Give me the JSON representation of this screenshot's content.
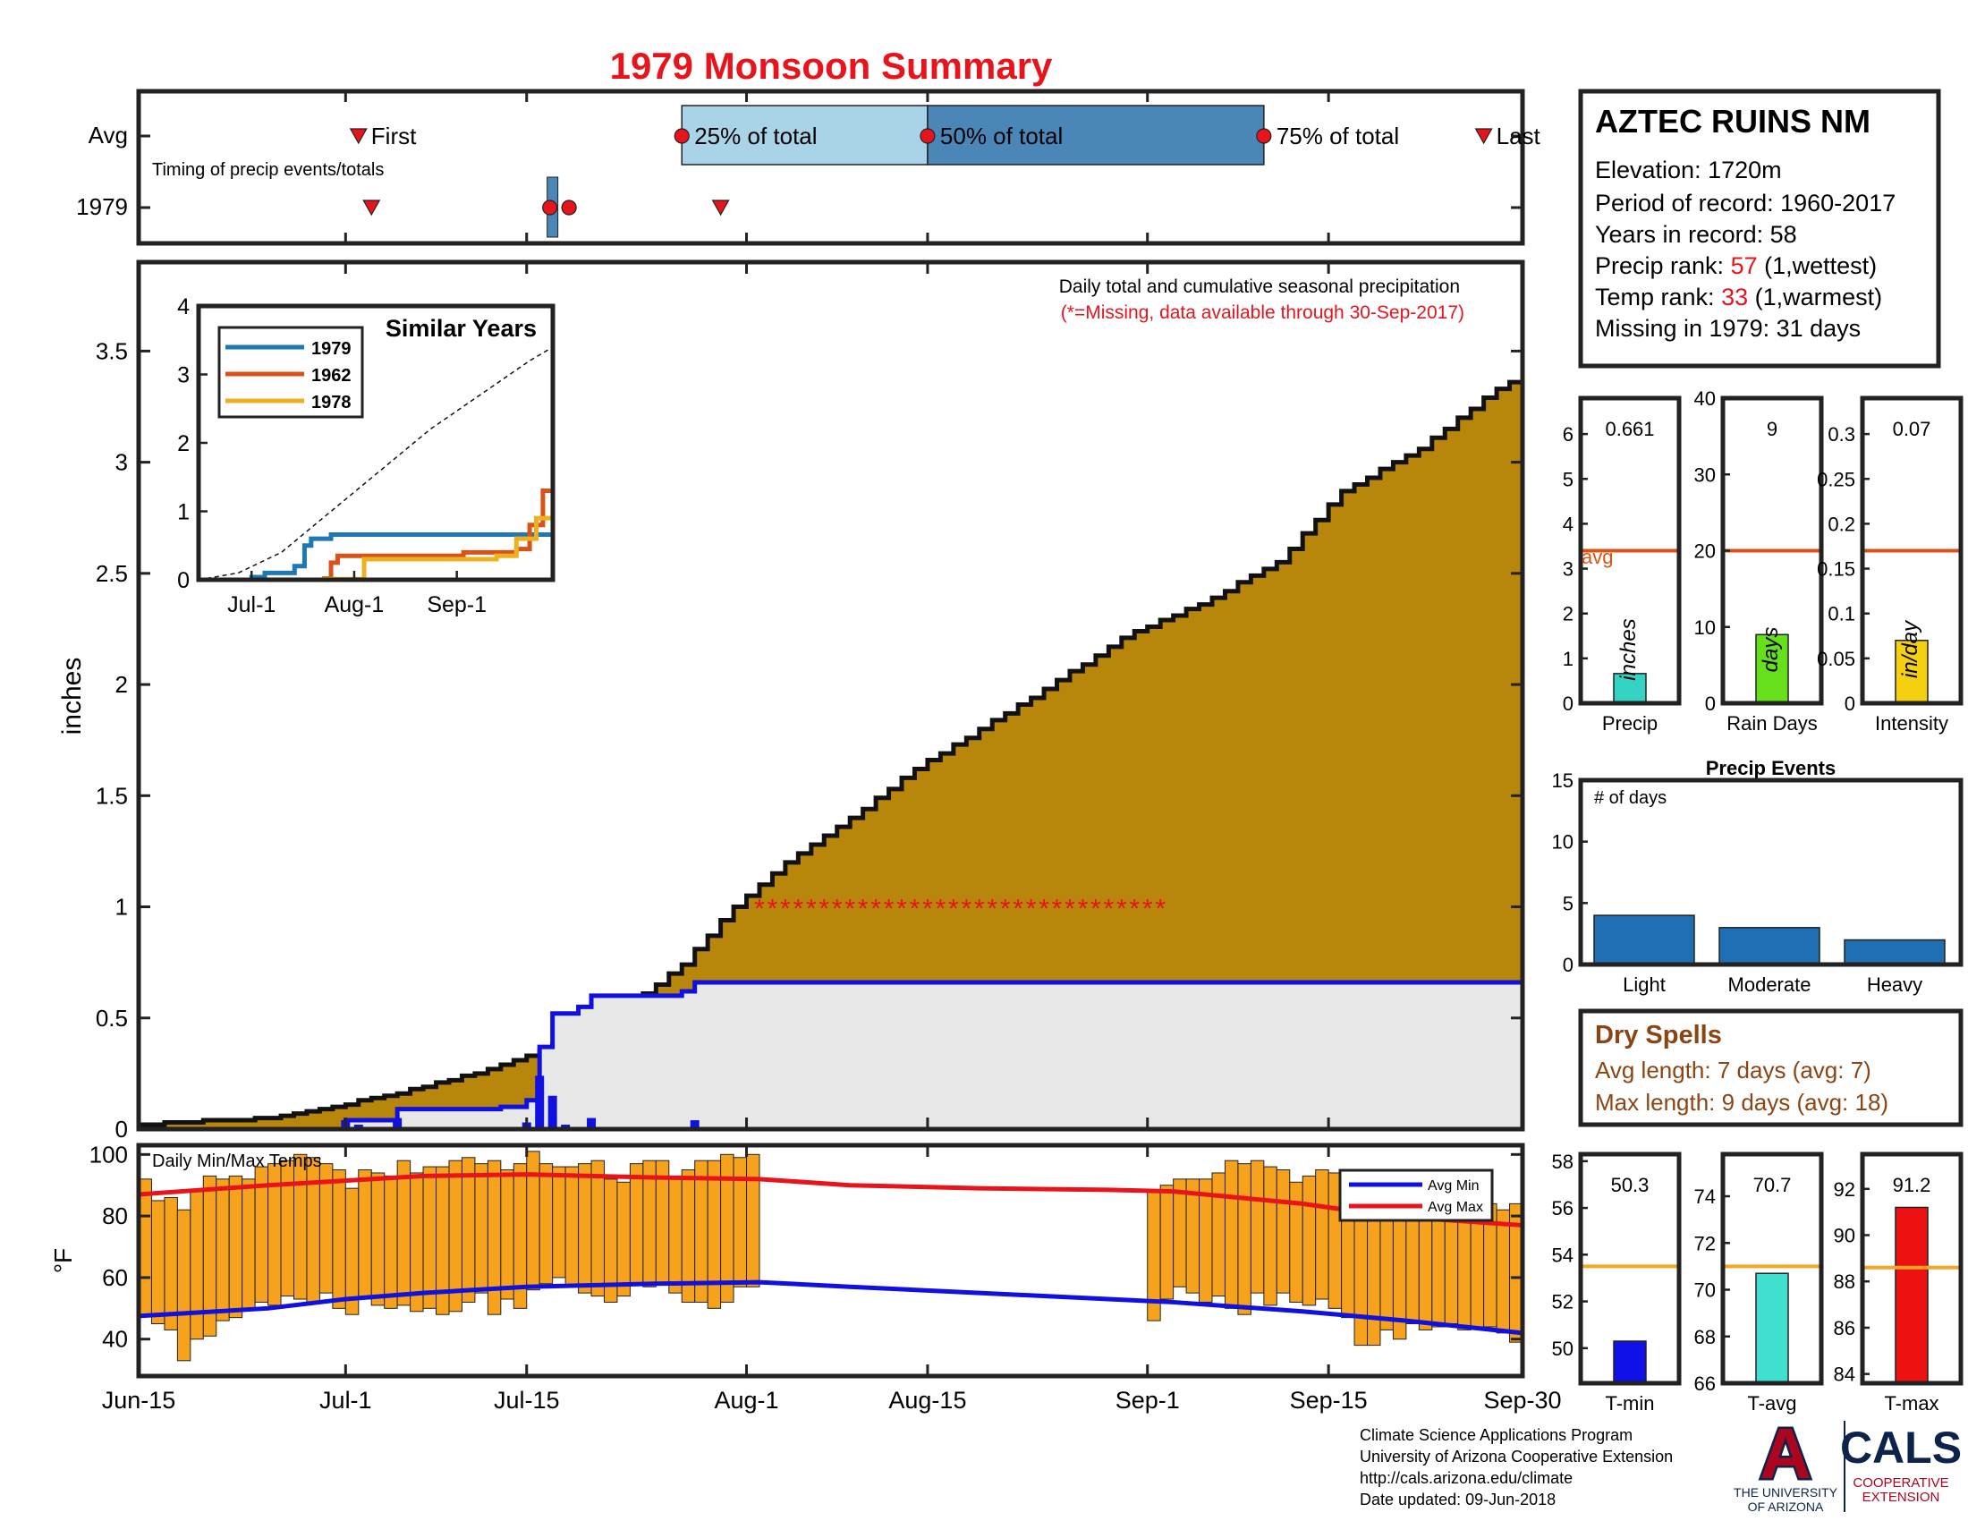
{
  "title": "1979 Monsoon Summary",
  "colors": {
    "title": "#e8141c",
    "cumulative_avg_fill": "#b8860b",
    "year_fill": "#e8e8e8",
    "year_line": "#1010e0",
    "daily_bar": "#1010e0",
    "temp_bar": "#f7a21c",
    "avg_min": "#1010e0",
    "avg_max": "#e8141c",
    "missing": "#e8141c",
    "sim_1979": "#1f77b4",
    "sim_1962": "#d95319",
    "sim_1978": "#edb120",
    "timing_light": "#a9d4e8",
    "timing_dark": "#4a86b8",
    "precip_bar": "#35d3c3",
    "raindays_bar": "#66e01a",
    "intensity_bar": "#f5d010",
    "events_bar": "#1f6fb4",
    "avg_line": "#d95319",
    "temp_avg_line": "#f5a623",
    "tmin_bar": "#1010e8",
    "tavg_bar": "#40e0d0",
    "tmax_bar": "#ee1111",
    "dry_text": "#8b4513",
    "brand_navy": "#0c234b",
    "brand_red": "#ab0520"
  },
  "timing": {
    "row_labels": [
      "Avg",
      "1979"
    ],
    "subtitle": "Timing of precip events/totals",
    "avg_labels": {
      "first": "First",
      "p25": "25% of total",
      "p50": "50% of total",
      "p75": "75% of total",
      "last": "Last"
    },
    "avg_days": {
      "first": 17,
      "p25": 42,
      "p50": 61,
      "p75": 87,
      "last": 104
    },
    "year_days": {
      "first": 18,
      "p25": 32,
      "p50": 33,
      "p75": 33,
      "last": 45
    }
  },
  "main": {
    "ylabel": "inches",
    "yticks": [
      "0",
      "0.5",
      "1",
      "1.5",
      "2",
      "2.5",
      "3",
      "3.5"
    ],
    "ymax": 3.9,
    "days": 107,
    "note1": "Daily total and cumulative seasonal precipitation",
    "note2": "(*=Missing, data available through 30-Sep-2017)",
    "missing_day_range": [
      48,
      79
    ],
    "missing_y": 1.0
  },
  "inset": {
    "title": "Similar Years",
    "yticks": [
      "0",
      "1",
      "2",
      "3",
      "4"
    ],
    "xticks": [
      "Jul-1",
      "Aug-1",
      "Sep-1"
    ],
    "legend": [
      "1979",
      "1962",
      "1978"
    ]
  },
  "temps": {
    "title": "Daily Min/Max Temps",
    "ylabel": "°F",
    "yticks": [
      "40",
      "60",
      "80",
      "100"
    ],
    "legend": [
      "Avg Min",
      "Avg Max"
    ]
  },
  "xaxis": {
    "labels": [
      "Jun-15",
      "Jul-1",
      "Jul-15",
      "Aug-1",
      "Aug-15",
      "Sep-1",
      "Sep-15",
      "Sep-30"
    ]
  },
  "station": {
    "name": "AZTEC RUINS NM",
    "elevation": "Elevation: 1720m",
    "period": "Period of record: 1960-2017",
    "years": "Years in record: 58",
    "precip_rank_label": "Precip rank: ",
    "precip_rank_value": "57",
    "precip_rank_note": " (1,wettest)",
    "temp_rank_label": "Temp rank: ",
    "temp_rank_value": "33",
    "temp_rank_note": " (1,warmest)",
    "missing": "Missing in 1979: 31 days"
  },
  "stats": {
    "precip": {
      "value": "0.661",
      "unit": "inches",
      "label": "Precip",
      "avg_label": "avg",
      "yticks": [
        "0",
        "1",
        "2",
        "3",
        "4",
        "5",
        "6"
      ]
    },
    "raindays": {
      "value": "9",
      "unit": "days",
      "label": "Rain Days",
      "yticks": [
        "0",
        "10",
        "20",
        "30",
        "40"
      ]
    },
    "intensity": {
      "value": "0.07",
      "unit": "in/day",
      "label": "Intensity",
      "yticks": [
        "0",
        "0.05",
        "0.1",
        "0.15",
        "0.2",
        "0.25",
        "0.3"
      ]
    }
  },
  "events": {
    "title": "Precip Events",
    "ylabel": "# of days",
    "yticks": [
      "0",
      "5",
      "10",
      "15"
    ],
    "categories": [
      "Light",
      "Moderate",
      "Heavy"
    ]
  },
  "dry": {
    "title": "Dry Spells",
    "avg": "Avg length: 7 days (avg: 7)",
    "max": "Max length: 9 days (avg: 18)"
  },
  "tstats": {
    "tmin": {
      "value": "50.3",
      "label": "T-min",
      "yticks": [
        "50",
        "52",
        "54",
        "56",
        "58"
      ]
    },
    "tavg": {
      "value": "70.7",
      "label": "T-avg",
      "yticks": [
        "66",
        "68",
        "70",
        "72",
        "74"
      ]
    },
    "tmax": {
      "value": "91.2",
      "label": "T-max",
      "yticks": [
        "84",
        "86",
        "88",
        "90",
        "92"
      ]
    }
  },
  "footer": {
    "line1": "Climate Science Applications Program",
    "line2": "University of Arizona Cooperative Extension",
    "line3": "http://cals.arizona.edu/climate",
    "line4": " Date updated: 09-Jun-2018",
    "ua_letter": "A",
    "ua_line1": "THE UNIVERSITY",
    "ua_line2": "OF ARIZONA",
    "cals": "CALS",
    "cals_line1": "COOPERATIVE",
    "cals_line2": "EXTENSION"
  },
  "chart_data": [
    {
      "type": "area",
      "name": "cumulative precipitation",
      "x_start": "Jun-15",
      "x_end": "Sep-30",
      "ylabel": "inches",
      "ylim": [
        0,
        3.9
      ],
      "avg_cumulative": [
        [
          0,
          0.02
        ],
        [
          10,
          0.05
        ],
        [
          14,
          0.09
        ],
        [
          20,
          0.16
        ],
        [
          26,
          0.25
        ],
        [
          30,
          0.33
        ],
        [
          35,
          0.45
        ],
        [
          38,
          0.56
        ],
        [
          42,
          0.74
        ],
        [
          46,
          1.0
        ],
        [
          50,
          1.2
        ],
        [
          55,
          1.4
        ],
        [
          60,
          1.62
        ],
        [
          65,
          1.8
        ],
        [
          70,
          1.98
        ],
        [
          76,
          2.21
        ],
        [
          82,
          2.36
        ],
        [
          88,
          2.55
        ],
        [
          93,
          2.87
        ],
        [
          99,
          3.06
        ],
        [
          104,
          3.29
        ],
        [
          107,
          3.4
        ]
      ],
      "year_1979_cumulative": [
        [
          0,
          0
        ],
        [
          16,
          0.04
        ],
        [
          20,
          0.09
        ],
        [
          28,
          0.1
        ],
        [
          30,
          0.13
        ],
        [
          31,
          0.37
        ],
        [
          32,
          0.52
        ],
        [
          34,
          0.55
        ],
        [
          35,
          0.6
        ],
        [
          42,
          0.62
        ],
        [
          43,
          0.66
        ],
        [
          107,
          0.66
        ]
      ],
      "year_1979_daily": [
        [
          16,
          0.04
        ],
        [
          17,
          0.02
        ],
        [
          18,
          0.01
        ],
        [
          20,
          0.05
        ],
        [
          30,
          0.03
        ],
        [
          31,
          0.24
        ],
        [
          32,
          0.15
        ],
        [
          33,
          0.02
        ],
        [
          35,
          0.05
        ],
        [
          43,
          0.04
        ]
      ],
      "missing_range": [
        "Jul-31",
        "Aug-31"
      ]
    },
    {
      "type": "line",
      "name": "Similar Years",
      "x_labels": [
        "Jul-1",
        "Aug-1",
        "Sep-1"
      ],
      "ylim": [
        0,
        4
      ],
      "series": [
        {
          "name": "1979",
          "values": [
            [
              0,
              0
            ],
            [
              16,
              0.04
            ],
            [
              20,
              0.1
            ],
            [
              29,
              0.2
            ],
            [
              32,
              0.5
            ],
            [
              34,
              0.6
            ],
            [
              40,
              0.66
            ],
            [
              107,
              0.66
            ]
          ]
        },
        {
          "name": "1962",
          "values": [
            [
              0,
              0
            ],
            [
              38,
              0.02
            ],
            [
              40,
              0.25
            ],
            [
              42,
              0.35
            ],
            [
              80,
              0.4
            ],
            [
              96,
              0.45
            ],
            [
              100,
              0.8
            ],
            [
              104,
              1.3
            ],
            [
              107,
              1.7
            ]
          ]
        },
        {
          "name": "1978",
          "values": [
            [
              0,
              0
            ],
            [
              38,
              0.01
            ],
            [
              50,
              0.3
            ],
            [
              90,
              0.35
            ],
            [
              96,
              0.6
            ],
            [
              102,
              0.9
            ],
            [
              107,
              1.1
            ]
          ]
        }
      ],
      "avg_dashed": [
        [
          0,
          0
        ],
        [
          12,
          0.1
        ],
        [
          25,
          0.4
        ],
        [
          40,
          1.0
        ],
        [
          55,
          1.6
        ],
        [
          70,
          2.2
        ],
        [
          85,
          2.7
        ],
        [
          100,
          3.2
        ],
        [
          107,
          3.4
        ]
      ]
    },
    {
      "type": "bar",
      "name": "Daily Min/Max Temps",
      "ylabel": "°F",
      "ylim": [
        28,
        103
      ],
      "legend": [
        "Avg Min",
        "Avg Max"
      ],
      "avg_max": [
        [
          0,
          87
        ],
        [
          10,
          90
        ],
        [
          18,
          92
        ],
        [
          22,
          93
        ],
        [
          30,
          93.5
        ],
        [
          40,
          92.5
        ],
        [
          48,
          92
        ],
        [
          55,
          90
        ],
        [
          65,
          89
        ],
        [
          75,
          88.5
        ],
        [
          80,
          88
        ],
        [
          85,
          86
        ],
        [
          90,
          84
        ],
        [
          95,
          81
        ],
        [
          100,
          79
        ],
        [
          107,
          77
        ]
      ],
      "avg_min": [
        [
          0,
          47.5
        ],
        [
          10,
          50
        ],
        [
          16,
          53
        ],
        [
          22,
          55
        ],
        [
          30,
          57
        ],
        [
          40,
          58
        ],
        [
          48,
          58.5
        ],
        [
          55,
          57
        ],
        [
          65,
          55
        ],
        [
          75,
          53
        ],
        [
          80,
          52
        ],
        [
          90,
          49
        ],
        [
          98,
          46
        ],
        [
          107,
          42
        ]
      ],
      "daily_min_max": [
        [
          0,
          48,
          92
        ],
        [
          1,
          45,
          85
        ],
        [
          2,
          43,
          86
        ],
        [
          3,
          33,
          82
        ],
        [
          4,
          40,
          88
        ],
        [
          5,
          41,
          93
        ],
        [
          6,
          46,
          92
        ],
        [
          7,
          47,
          93
        ],
        [
          8,
          50,
          92
        ],
        [
          9,
          52,
          96
        ],
        [
          10,
          51,
          97
        ],
        [
          11,
          54,
          98
        ],
        [
          12,
          53,
          100
        ],
        [
          13,
          52,
          99
        ],
        [
          14,
          55,
          97
        ],
        [
          15,
          50,
          95
        ],
        [
          16,
          48,
          89
        ],
        [
          17,
          53,
          95
        ],
        [
          18,
          51,
          94
        ],
        [
          19,
          50,
          93
        ],
        [
          20,
          51,
          98
        ],
        [
          21,
          49,
          94
        ],
        [
          22,
          50,
          96
        ],
        [
          23,
          48,
          96
        ],
        [
          24,
          49,
          98
        ],
        [
          25,
          52,
          99
        ],
        [
          26,
          55,
          97
        ],
        [
          27,
          48,
          98
        ],
        [
          28,
          53,
          95
        ],
        [
          29,
          50,
          97
        ],
        [
          30,
          56,
          101
        ],
        [
          31,
          58,
          97
        ],
        [
          32,
          60,
          96
        ],
        [
          33,
          57,
          96
        ],
        [
          34,
          55,
          97
        ],
        [
          35,
          54,
          98
        ],
        [
          36,
          52,
          92
        ],
        [
          37,
          54,
          91
        ],
        [
          38,
          58,
          97
        ],
        [
          39,
          57,
          98
        ],
        [
          40,
          58,
          98
        ],
        [
          41,
          55,
          93
        ],
        [
          42,
          52,
          95
        ],
        [
          43,
          52,
          98
        ],
        [
          44,
          50,
          98
        ],
        [
          45,
          52,
          100
        ],
        [
          46,
          57,
          99
        ],
        [
          47,
          57,
          100
        ],
        [
          78,
          46,
          88
        ],
        [
          79,
          53,
          90
        ],
        [
          80,
          57,
          92
        ],
        [
          81,
          55,
          92
        ],
        [
          82,
          52,
          92
        ],
        [
          83,
          54,
          94
        ],
        [
          84,
          50,
          98
        ],
        [
          85,
          48,
          97
        ],
        [
          86,
          55,
          98
        ],
        [
          87,
          51,
          96
        ],
        [
          88,
          55,
          95
        ],
        [
          89,
          52,
          91
        ],
        [
          90,
          51,
          93
        ],
        [
          91,
          53,
          95
        ],
        [
          92,
          50,
          94
        ],
        [
          93,
          47,
          88
        ],
        [
          94,
          38,
          83
        ],
        [
          95,
          38,
          85
        ],
        [
          96,
          43,
          82
        ],
        [
          97,
          40,
          85
        ],
        [
          98,
          45,
          83
        ],
        [
          99,
          43,
          85
        ],
        [
          100,
          44,
          82
        ],
        [
          101,
          45,
          83
        ],
        [
          102,
          43,
          81
        ],
        [
          103,
          44,
          80
        ],
        [
          104,
          44,
          84
        ],
        [
          105,
          42,
          82
        ],
        [
          106,
          39,
          84
        ]
      ]
    },
    {
      "type": "bar",
      "name": "Precip",
      "categories": [
        "Precip"
      ],
      "values": [
        0.661
      ],
      "avg": 3.4,
      "ylim": [
        0,
        6.8
      ],
      "units": "inches"
    },
    {
      "type": "bar",
      "name": "Rain Days",
      "categories": [
        "Rain Days"
      ],
      "values": [
        9
      ],
      "avg": 20,
      "ylim": [
        0,
        40
      ],
      "units": "days"
    },
    {
      "type": "bar",
      "name": "Intensity",
      "categories": [
        "Intensity"
      ],
      "values": [
        0.07
      ],
      "avg": 0.17,
      "ylim": [
        0,
        0.34
      ],
      "units": "in/day"
    },
    {
      "type": "bar",
      "name": "Precip Events",
      "categories": [
        "Light",
        "Moderate",
        "Heavy"
      ],
      "values": [
        4,
        3,
        2
      ],
      "ylim": [
        0,
        15
      ],
      "ylabel": "# of days"
    },
    {
      "type": "bar",
      "name": "T-min",
      "categories": [
        "T-min"
      ],
      "values": [
        50.3
      ],
      "avg": 53.5,
      "ylim": [
        48.5,
        58.3
      ]
    },
    {
      "type": "bar",
      "name": "T-avg",
      "categories": [
        "T-avg"
      ],
      "values": [
        70.7
      ],
      "avg": 71,
      "ylim": [
        66,
        75.8
      ]
    },
    {
      "type": "bar",
      "name": "T-max",
      "categories": [
        "T-max"
      ],
      "values": [
        91.2
      ],
      "avg": 88.6,
      "ylim": [
        83.6,
        93.5
      ]
    }
  ]
}
